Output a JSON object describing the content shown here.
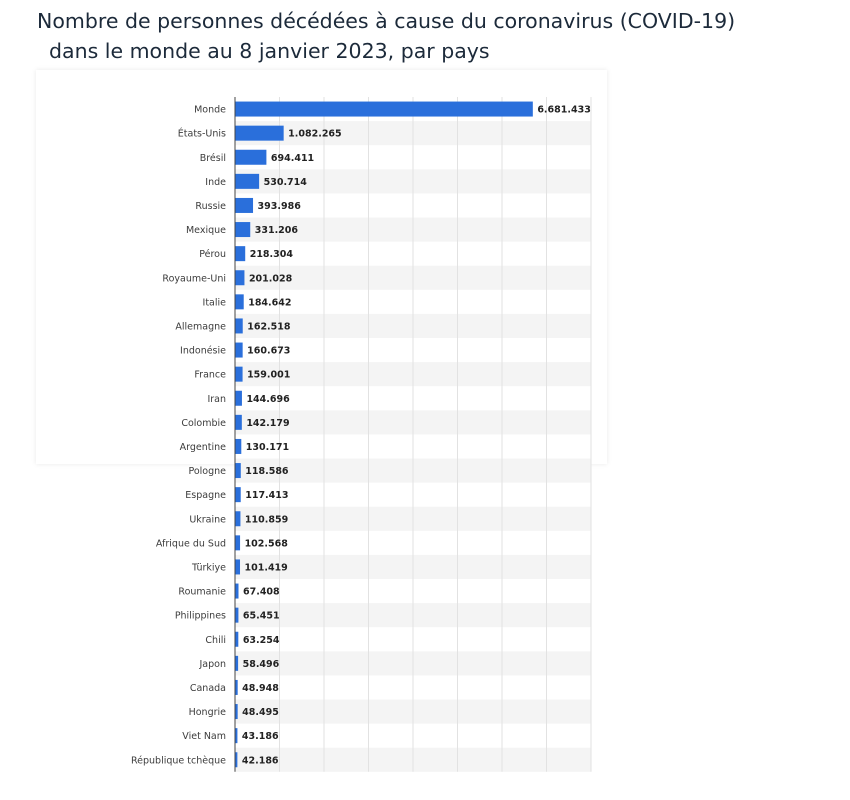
{
  "title": {
    "line1": "Nombre de personnes décédées à cause du coronavirus (COVID-19)",
    "line2": "dans le monde au 8  janvier 2023, par pays"
  },
  "colors": {
    "bar": "#2a6fdb",
    "band": "#f4f4f4",
    "grid": "#e2e2e2",
    "axis": "#444444"
  },
  "chart_data": {
    "type": "bar",
    "orientation": "horizontal",
    "categories": [
      "Monde",
      "États-Unis",
      "Brésil",
      "Inde",
      "Russie",
      "Mexique",
      "Pérou",
      "Royaume-Uni",
      "Italie",
      "Allemagne",
      "Indonésie",
      "France",
      "Iran",
      "Colombie",
      "Argentine",
      "Pologne",
      "Espagne",
      "Ukraine",
      "Afrique du Sud",
      "Türkiye",
      "Roumanie",
      "Philippines",
      "Chili",
      "Japon",
      "Canada",
      "Hongrie",
      "Viet Nam",
      "République tchèque"
    ],
    "values": [
      6681433,
      1082265,
      694411,
      530714,
      393986,
      331206,
      218304,
      201028,
      184642,
      162518,
      160673,
      159001,
      144696,
      142179,
      130171,
      118586,
      117413,
      110859,
      102568,
      101419,
      67408,
      65451,
      63254,
      58496,
      48948,
      48495,
      43186,
      42186
    ],
    "value_labels": [
      "6.681.433",
      "1.082.265",
      "694.411",
      "530.714",
      "393.986",
      "331.206",
      "218.304",
      "201.028",
      "184.642",
      "162.518",
      "160.673",
      "159.001",
      "144.696",
      "142.179",
      "130.171",
      "118.586",
      "117.413",
      "110.859",
      "102.568",
      "101.419",
      "67.408",
      "65.451",
      "63.254",
      "58.496",
      "48.948",
      "48.495",
      "43.186",
      "42.186"
    ],
    "xlim": [
      0,
      8000000
    ],
    "grid": true
  }
}
